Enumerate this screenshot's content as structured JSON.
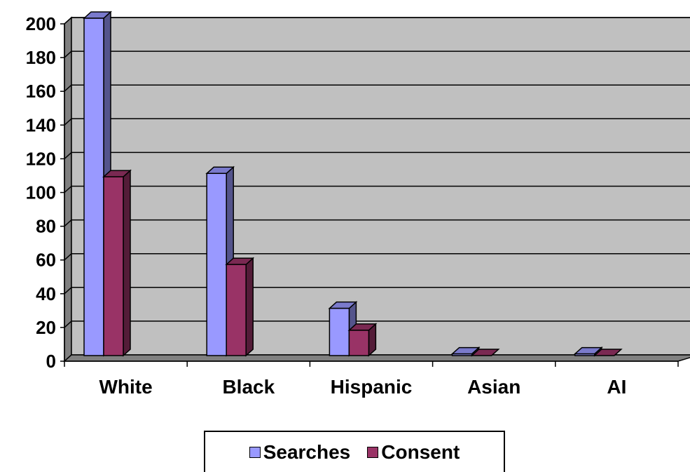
{
  "chart_data": {
    "type": "bar",
    "style": "3d-clustered-column",
    "categories": [
      "White",
      "Black",
      "Hispanic",
      "Asian",
      "AI"
    ],
    "series": [
      {
        "name": "Searches",
        "values": [
          200,
          108,
          28,
          1,
          1
        ],
        "color": "#9999ff"
      },
      {
        "name": "Consent",
        "values": [
          106,
          54,
          15,
          0,
          0
        ],
        "color": "#993366"
      }
    ],
    "ylim": [
      0,
      200
    ],
    "yticks": [
      0,
      20,
      40,
      60,
      80,
      100,
      120,
      140,
      160,
      180,
      200
    ],
    "grid": true,
    "wall_color": "#c0c0c0",
    "legend_position": "bottom"
  }
}
